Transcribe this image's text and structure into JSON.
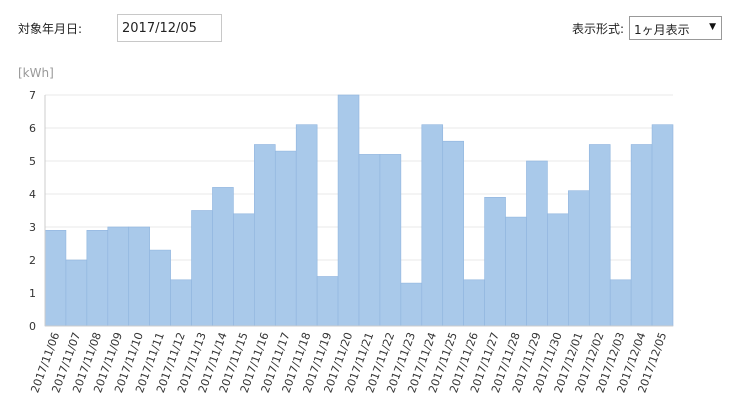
{
  "form": {
    "date_label": "対象年月日:",
    "date_value": "2017/12/05",
    "display_label": "表示形式:",
    "display_selected": "1ヶ月表示"
  },
  "chart_data": {
    "type": "bar",
    "ylabel": "[kWh]",
    "ylim": [
      0,
      7
    ],
    "yticks": [
      0,
      1,
      2,
      3,
      4,
      5,
      6,
      7
    ],
    "grid": true,
    "bar_color": "#a9c9ea",
    "bar_edge_color": "#8fb4de",
    "categories": [
      "2017/11/06",
      "2017/11/07",
      "2017/11/08",
      "2017/11/09",
      "2017/11/10",
      "2017/11/11",
      "2017/11/12",
      "2017/11/13",
      "2017/11/14",
      "2017/11/15",
      "2017/11/16",
      "2017/11/17",
      "2017/11/18",
      "2017/11/19",
      "2017/11/20",
      "2017/11/21",
      "2017/11/22",
      "2017/11/23",
      "2017/11/24",
      "2017/11/25",
      "2017/11/26",
      "2017/11/27",
      "2017/11/28",
      "2017/11/29",
      "2017/11/30",
      "2017/12/01",
      "2017/12/02",
      "2017/12/03",
      "2017/12/04",
      "2017/12/05"
    ],
    "values": [
      2.9,
      2.0,
      2.9,
      3.0,
      3.0,
      2.3,
      1.4,
      3.5,
      4.2,
      3.4,
      5.5,
      5.3,
      6.1,
      1.5,
      7.0,
      5.2,
      5.2,
      1.3,
      6.1,
      5.6,
      1.4,
      3.9,
      3.3,
      5.0,
      3.4,
      4.1,
      5.5,
      1.4,
      5.5,
      6.1
    ]
  }
}
